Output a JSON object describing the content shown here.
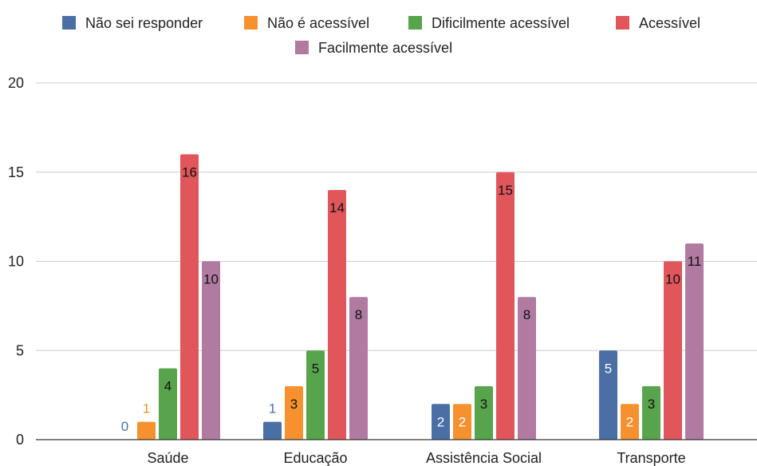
{
  "chart_data": {
    "type": "bar",
    "categories": [
      "Saúde",
      "Educação",
      "Assistência Social",
      "Transporte"
    ],
    "series": [
      {
        "name": "Não sei responder",
        "color": "#4a6fa5",
        "values": [
          0,
          1,
          2,
          5
        ]
      },
      {
        "name": "Não é acessível",
        "color": "#f5922f",
        "values": [
          1,
          3,
          2,
          2
        ]
      },
      {
        "name": "Dificilmente acessível",
        "color": "#58a44c",
        "values": [
          4,
          5,
          3,
          3
        ]
      },
      {
        "name": "Acessível",
        "color": "#e0565b",
        "values": [
          16,
          14,
          15,
          10
        ]
      },
      {
        "name": "Facilmente acessível",
        "color": "#b07aa1",
        "values": [
          10,
          8,
          8,
          11
        ]
      }
    ],
    "ylim": [
      0,
      20
    ],
    "yticks": [
      0,
      5,
      10,
      15,
      20
    ],
    "grid": true,
    "legend": "top",
    "data_labels": true
  }
}
